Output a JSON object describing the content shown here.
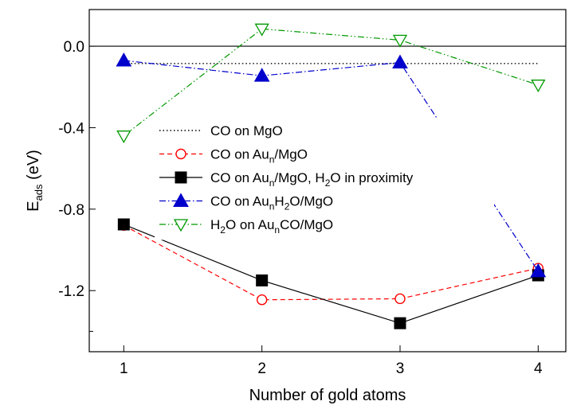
{
  "chart_data": {
    "type": "line",
    "xlabel": "Number of gold atoms",
    "ylabel": {
      "main": "E",
      "sub": "ads",
      "unit": " (eV)"
    },
    "xlim": [
      0.75,
      4.2
    ],
    "ylim": [
      -1.5,
      0.18
    ],
    "x_ticks": [
      1,
      2,
      3,
      4
    ],
    "y_ticks": [
      0.0,
      -0.4,
      -0.8,
      -1.2
    ],
    "y_tick_labels": [
      "0.0",
      "-0.4",
      "-0.8",
      "-1.2"
    ],
    "zero_line": 0.0,
    "grid": false,
    "legend_position": "center",
    "series": [
      {
        "key": "co_mgo",
        "legend": [
          {
            "t": "CO on MgO"
          }
        ],
        "color": "#000000",
        "style": "dotted",
        "marker": "none",
        "x": [
          1,
          4
        ],
        "y": [
          -0.085,
          -0.085
        ]
      },
      {
        "key": "co_aun_mgo",
        "legend": [
          {
            "t": "CO on Au"
          },
          {
            "t": "n",
            "sub": true
          },
          {
            "t": "/MgO"
          }
        ],
        "color": "#ff0000",
        "style": "dashed",
        "marker": "circle-open",
        "x": [
          1,
          2,
          3,
          4
        ],
        "y": [
          -0.88,
          -1.245,
          -1.24,
          -1.09
        ]
      },
      {
        "key": "co_aun_mgo_h2o",
        "legend": [
          {
            "t": "CO on Au"
          },
          {
            "t": "n",
            "sub": true
          },
          {
            "t": "/MgO, H"
          },
          {
            "t": "2",
            "sub": true
          },
          {
            "t": "O in proximity"
          }
        ],
        "color": "#000000",
        "style": "solid",
        "marker": "square-filled",
        "x": [
          1,
          2,
          3,
          4
        ],
        "y": [
          -0.875,
          -1.15,
          -1.36,
          -1.125
        ]
      },
      {
        "key": "co_aunh2o_mgo",
        "legend": [
          {
            "t": "CO on Au"
          },
          {
            "t": "n",
            "sub": true
          },
          {
            "t": "H"
          },
          {
            "t": "2",
            "sub": true
          },
          {
            "t": "O/MgO"
          }
        ],
        "color": "#0000cc",
        "style": "dashdot",
        "marker": "triangle-up-filled",
        "x": [
          1,
          2,
          3,
          4
        ],
        "y": [
          -0.07,
          -0.145,
          -0.08,
          -1.105
        ]
      },
      {
        "key": "h2o_auncomgo",
        "legend": [
          {
            "t": "H"
          },
          {
            "t": "2",
            "sub": true
          },
          {
            "t": "O on Au"
          },
          {
            "t": "n",
            "sub": true
          },
          {
            "t": "CO/MgO"
          }
        ],
        "color": "#009900",
        "style": "dashdotdot",
        "marker": "triangle-down-open",
        "x": [
          1,
          2,
          3,
          4
        ],
        "y": [
          -0.44,
          0.085,
          0.03,
          -0.19
        ]
      }
    ]
  }
}
